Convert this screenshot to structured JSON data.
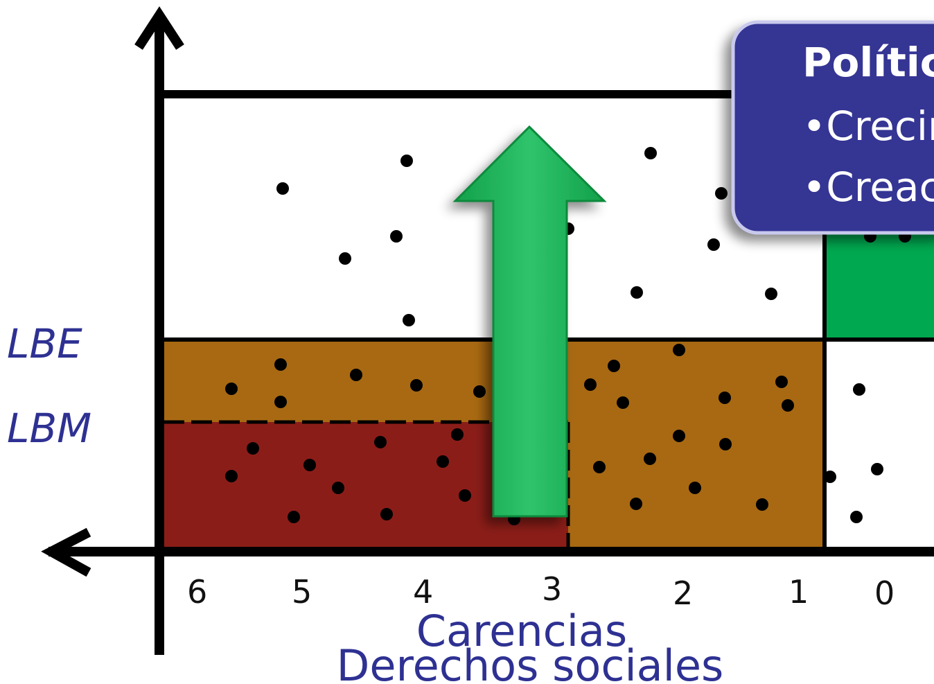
{
  "labels": {
    "lbe": "LBE",
    "lbm": "LBM"
  },
  "x_ticks": [
    "6",
    "5",
    "4",
    "3",
    "2",
    "1",
    "0"
  ],
  "axis_title_line1": "Carencias",
  "axis_title_line2": "Derechos sociales",
  "callout": {
    "title": "Polític",
    "items": [
      "•Crecim",
      "•Creaci"
    ]
  },
  "colors": {
    "extreme_poverty": "#8b1d18",
    "moderate_poverty": "#a86912",
    "vulnerable_income": "#00a84f",
    "arrow": "#19b35a",
    "callout_bg": "#343494",
    "text_blue": "#2e3192"
  },
  "icons": [
    "left-arrow-icon",
    "up-arrow-icon",
    "green-up-arrow-icon"
  ]
}
